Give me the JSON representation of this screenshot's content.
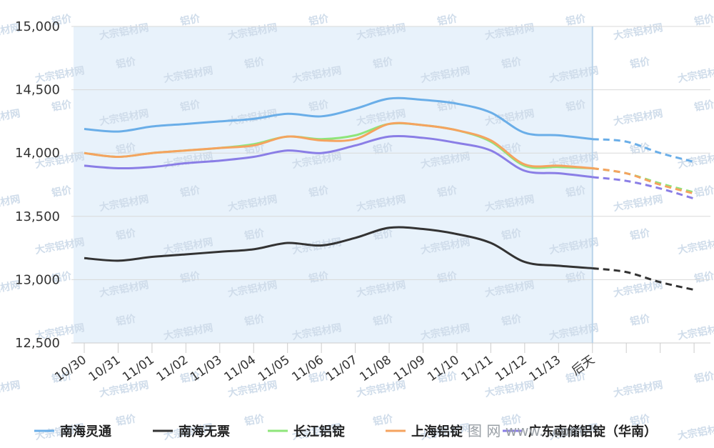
{
  "chart_data": {
    "type": "line",
    "categories": [
      "10/30",
      "10/31",
      "11/01",
      "11/02",
      "11/03",
      "11/04",
      "11/05",
      "11/06",
      "11/07",
      "11/08",
      "11/09",
      "11/10",
      "11/11",
      "11/12",
      "11/13",
      "后天",
      "",
      "",
      ""
    ],
    "actual_count": 16,
    "forecast_label": "后天",
    "ylim": [
      12500,
      15000
    ],
    "yticks": [
      12500,
      13000,
      13500,
      14000,
      14500,
      15000
    ],
    "ytick_labels": [
      "12,500",
      "13,000",
      "13,500",
      "14,000",
      "14,500",
      "15,000"
    ],
    "grid": true,
    "legend_position": "bottom",
    "highlight_region": "historical",
    "series": [
      {
        "name": "南海灵通",
        "color": "#6aaee8",
        "values": [
          14190,
          14170,
          14210,
          14230,
          14250,
          14270,
          14310,
          14290,
          14350,
          14430,
          14420,
          14390,
          14320,
          14160,
          14140,
          14110,
          14090,
          14000,
          13930
        ]
      },
      {
        "name": "南海无票",
        "color": "#333333",
        "values": [
          13170,
          13150,
          13180,
          13200,
          13220,
          13240,
          13290,
          13270,
          13330,
          13410,
          13400,
          13360,
          13290,
          13140,
          13110,
          13090,
          13060,
          12980,
          12920
        ]
      },
      {
        "name": "长江铝锭",
        "color": "#8ee57a",
        "values": [
          14000,
          13970,
          14000,
          14020,
          14040,
          14070,
          14130,
          14110,
          14140,
          14230,
          14220,
          14180,
          14090,
          13900,
          13890,
          13880,
          13840,
          13760,
          13690
        ]
      },
      {
        "name": "上海铝锭",
        "color": "#f5a35f",
        "values": [
          14000,
          13970,
          14000,
          14020,
          14040,
          14060,
          14130,
          14100,
          14110,
          14230,
          14220,
          14180,
          14100,
          13910,
          13900,
          13880,
          13840,
          13750,
          13680
        ]
      },
      {
        "name": "广东南储铝锭（华南）",
        "color": "#8a7ee6",
        "values": [
          13900,
          13880,
          13890,
          13920,
          13940,
          13970,
          14020,
          14000,
          14060,
          14130,
          14120,
          14080,
          14020,
          13860,
          13840,
          13810,
          13780,
          13720,
          13640
        ]
      }
    ]
  },
  "watermark": {
    "logo_text": "大宗铝材网",
    "price_text": "铝价"
  },
  "site_text": "图 网 www.     .com"
}
